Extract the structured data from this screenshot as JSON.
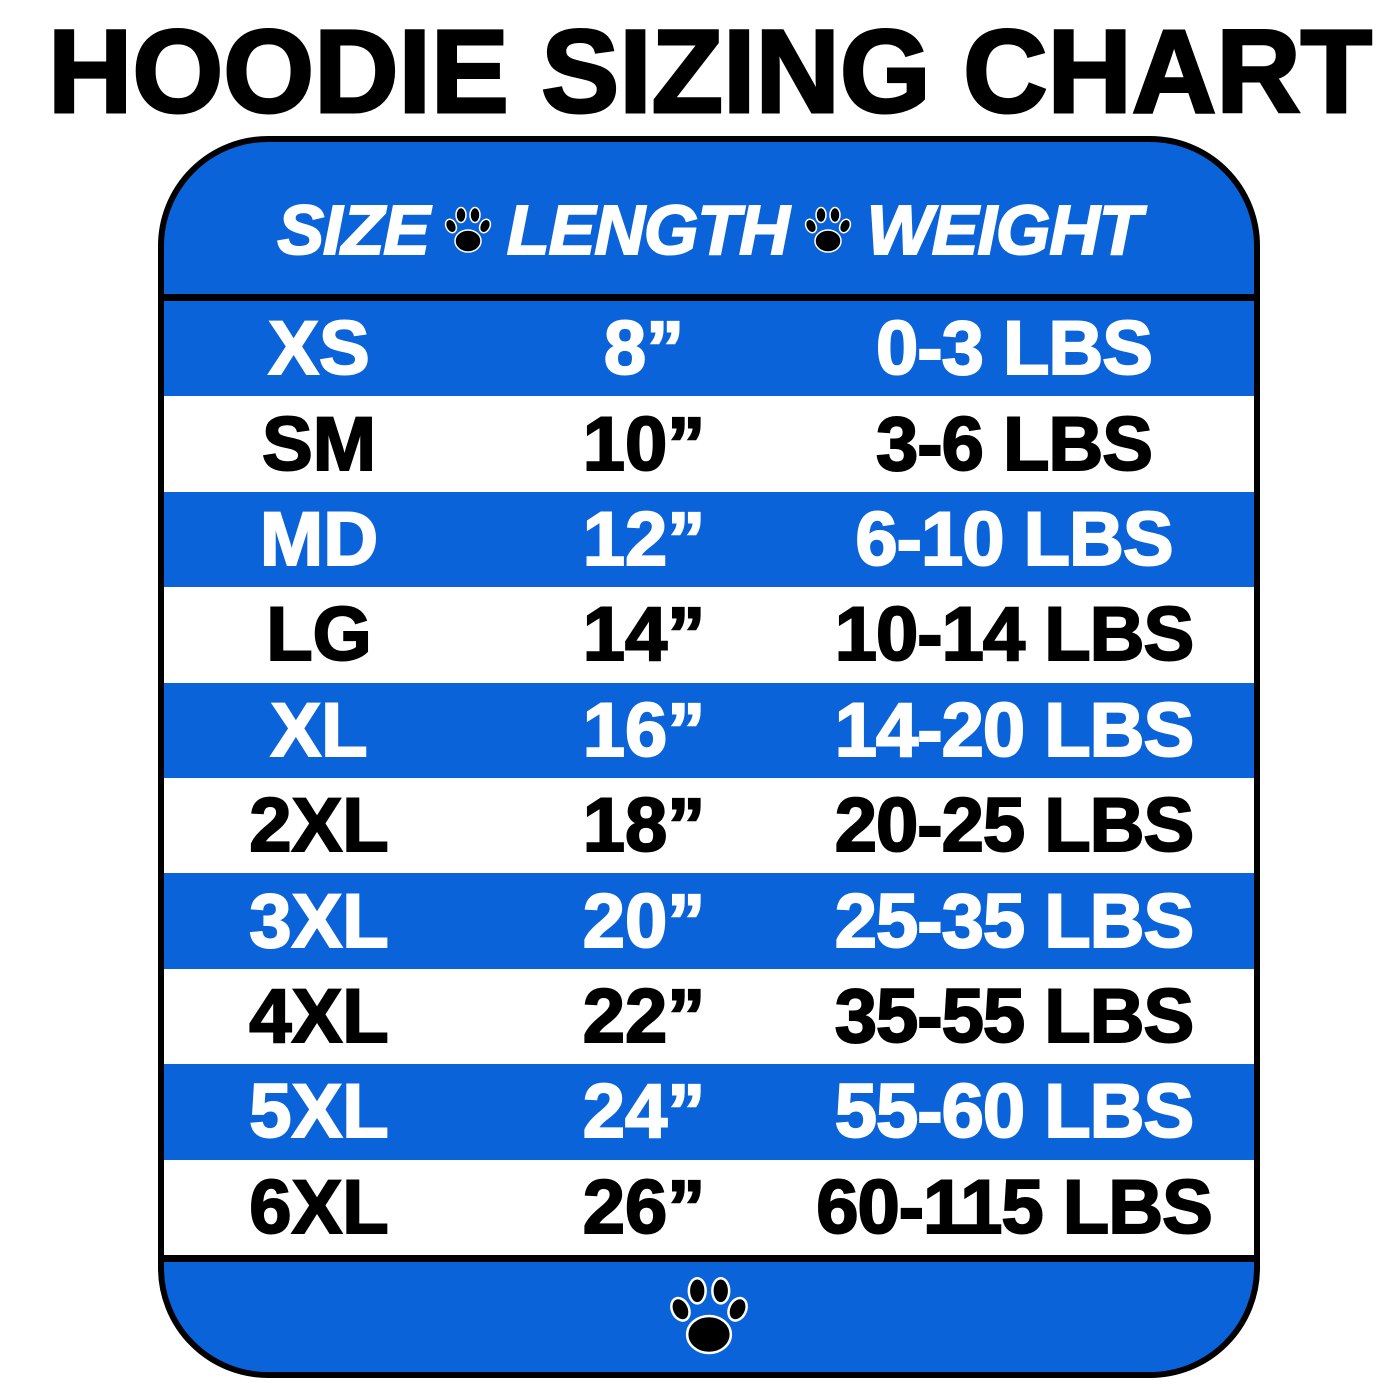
{
  "title": "HOODIE SIZING CHART",
  "colors": {
    "blue": "#0b63d9",
    "white": "#ffffff",
    "black": "#000000"
  },
  "table": {
    "headers": [
      "SIZE",
      "LENGTH",
      "WEIGHT"
    ],
    "separator_icon": "paw-print-icon",
    "rows": [
      {
        "size": "XS",
        "length": "8”",
        "weight": "0-3 LBS"
      },
      {
        "size": "SM",
        "length": "10”",
        "weight": "3-6 LBS"
      },
      {
        "size": "MD",
        "length": "12”",
        "weight": "6-10 LBS"
      },
      {
        "size": "LG",
        "length": "14”",
        "weight": "10-14 LBS"
      },
      {
        "size": "XL",
        "length": "16”",
        "weight": "14-20 LBS"
      },
      {
        "size": "2XL",
        "length": "18”",
        "weight": "20-25 LBS"
      },
      {
        "size": "3XL",
        "length": "20”",
        "weight": "25-35 LBS"
      },
      {
        "size": "4XL",
        "length": "22”",
        "weight": "35-55 LBS"
      },
      {
        "size": "5XL",
        "length": "24”",
        "weight": "55-60 LBS"
      },
      {
        "size": "6XL",
        "length": "26”",
        "weight": "60-115 LBS"
      }
    ]
  },
  "footer_icon": "paw-print-icon"
}
